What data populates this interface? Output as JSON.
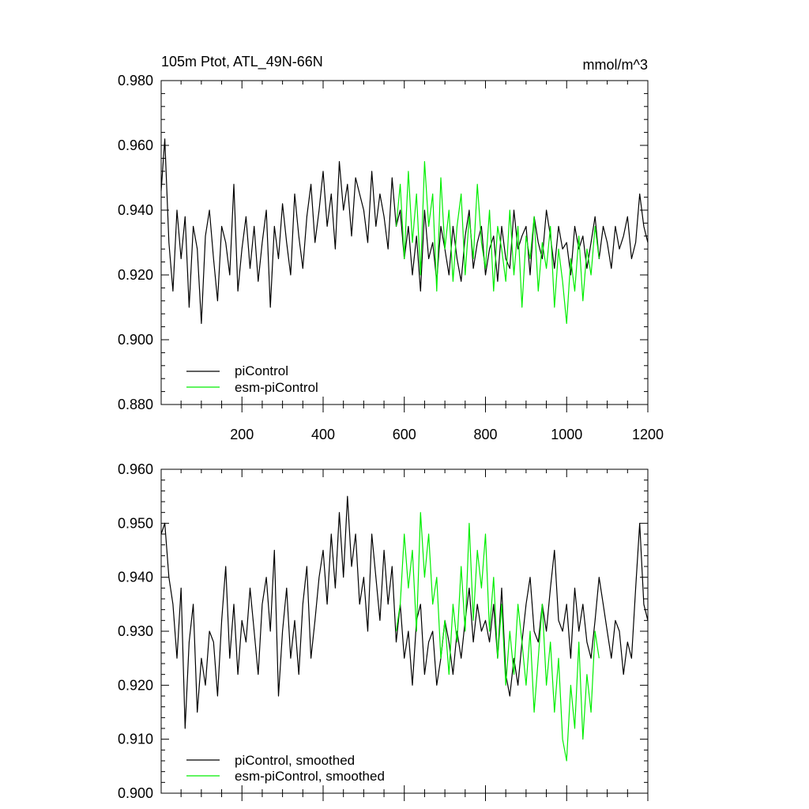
{
  "figure": {
    "title": "105m Ptot, ATL_49N-66N",
    "units": "mmol/m^3"
  },
  "chart_data": [
    {
      "type": "line",
      "title": "105m Ptot, ATL_49N-66N",
      "units": "mmol/m^3",
      "xlim": [
        1,
        1200
      ],
      "ylim": [
        0.88,
        0.98
      ],
      "x_ticks": [
        200,
        400,
        600,
        800,
        1000,
        1200
      ],
      "x_tick_labels": [
        "200",
        "400",
        "600",
        "800",
        "1000",
        "1200"
      ],
      "y_ticks": [
        0.88,
        0.9,
        0.92,
        0.94,
        0.96,
        0.98
      ],
      "y_tick_labels": [
        "0.880",
        "0.900",
        "0.920",
        "0.940",
        "0.960",
        "0.980"
      ],
      "legend": "bottom-left",
      "grid": false,
      "series": [
        {
          "name": "piControl",
          "color": "#000000",
          "x": [
            1,
            10,
            20,
            30,
            40,
            50,
            60,
            70,
            80,
            90,
            100,
            110,
            120,
            130,
            140,
            150,
            160,
            170,
            180,
            190,
            200,
            210,
            220,
            230,
            240,
            250,
            260,
            270,
            280,
            290,
            300,
            310,
            320,
            330,
            340,
            350,
            360,
            370,
            380,
            390,
            400,
            410,
            420,
            430,
            440,
            450,
            460,
            470,
            480,
            490,
            500,
            510,
            520,
            530,
            540,
            550,
            560,
            570,
            580,
            590,
            600,
            610,
            620,
            630,
            640,
            650,
            660,
            670,
            680,
            690,
            700,
            710,
            720,
            730,
            740,
            750,
            760,
            770,
            780,
            790,
            800,
            810,
            820,
            830,
            840,
            850,
            860,
            870,
            880,
            890,
            900,
            910,
            920,
            930,
            940,
            950,
            960,
            970,
            980,
            990,
            1000,
            1010,
            1020,
            1030,
            1040,
            1050,
            1060,
            1070,
            1080,
            1090,
            1100,
            1110,
            1120,
            1130,
            1140,
            1150,
            1160,
            1170,
            1180,
            1190,
            1200
          ],
          "y": [
            0.946,
            0.962,
            0.93,
            0.915,
            0.94,
            0.925,
            0.938,
            0.91,
            0.935,
            0.928,
            0.905,
            0.932,
            0.94,
            0.925,
            0.912,
            0.935,
            0.93,
            0.92,
            0.948,
            0.915,
            0.928,
            0.938,
            0.922,
            0.935,
            0.918,
            0.93,
            0.94,
            0.91,
            0.935,
            0.925,
            0.942,
            0.93,
            0.92,
            0.945,
            0.932,
            0.922,
            0.938,
            0.948,
            0.93,
            0.94,
            0.952,
            0.935,
            0.945,
            0.928,
            0.955,
            0.94,
            0.948,
            0.932,
            0.95,
            0.945,
            0.94,
            0.93,
            0.952,
            0.935,
            0.945,
            0.938,
            0.928,
            0.95,
            0.935,
            0.94,
            0.925,
            0.935,
            0.92,
            0.932,
            0.915,
            0.94,
            0.925,
            0.93,
            0.918,
            0.935,
            0.928,
            0.92,
            0.935,
            0.925,
            0.918,
            0.932,
            0.94,
            0.922,
            0.93,
            0.935,
            0.92,
            0.928,
            0.932,
            0.918,
            0.935,
            0.925,
            0.922,
            0.94,
            0.928,
            0.932,
            0.935,
            0.92,
            0.938,
            0.93,
            0.925,
            0.94,
            0.932,
            0.922,
            0.935,
            0.928,
            0.93,
            0.92,
            0.935,
            0.928,
            0.932,
            0.922,
            0.93,
            0.938,
            0.925,
            0.935,
            0.93,
            0.922,
            0.935,
            0.928,
            0.932,
            0.938,
            0.925,
            0.93,
            0.945,
            0.935,
            0.93
          ]
        },
        {
          "name": "esm-piControl",
          "color": "#00ee00",
          "x": [
            580,
            590,
            600,
            610,
            620,
            630,
            640,
            650,
            660,
            670,
            680,
            690,
            700,
            710,
            720,
            730,
            740,
            750,
            760,
            770,
            780,
            790,
            800,
            810,
            820,
            830,
            840,
            850,
            860,
            870,
            880,
            890,
            900,
            910,
            920,
            930,
            940,
            950,
            960,
            970,
            980,
            990,
            1000,
            1010,
            1020,
            1030,
            1040,
            1050,
            1060,
            1070,
            1080
          ],
          "y": [
            0.935,
            0.948,
            0.925,
            0.952,
            0.93,
            0.945,
            0.92,
            0.955,
            0.935,
            0.945,
            0.915,
            0.95,
            0.928,
            0.94,
            0.918,
            0.935,
            0.945,
            0.92,
            0.938,
            0.925,
            0.948,
            0.93,
            0.922,
            0.94,
            0.915,
            0.935,
            0.928,
            0.918,
            0.94,
            0.92,
            0.935,
            0.91,
            0.932,
            0.925,
            0.938,
            0.915,
            0.93,
            0.922,
            0.935,
            0.91,
            0.928,
            0.918,
            0.905,
            0.925,
            0.915,
            0.932,
            0.912,
            0.928,
            0.92,
            0.935,
            0.925
          ]
        }
      ]
    },
    {
      "type": "line",
      "xlim": [
        1,
        1200
      ],
      "ylim": [
        0.9,
        0.96
      ],
      "x_ticks": [
        200,
        400,
        600,
        800,
        1000,
        1200
      ],
      "y_ticks": [
        0.9,
        0.91,
        0.92,
        0.93,
        0.94,
        0.95,
        0.96
      ],
      "y_tick_labels": [
        "0.900",
        "0.910",
        "0.920",
        "0.930",
        "0.940",
        "0.950",
        "0.960"
      ],
      "legend": "bottom-left",
      "grid": false,
      "series": [
        {
          "name": "piControl, smoothed",
          "color": "#000000",
          "x": [
            1,
            10,
            20,
            30,
            40,
            50,
            60,
            70,
            80,
            90,
            100,
            110,
            120,
            130,
            140,
            150,
            160,
            170,
            180,
            190,
            200,
            210,
            220,
            230,
            240,
            250,
            260,
            270,
            280,
            290,
            300,
            310,
            320,
            330,
            340,
            350,
            360,
            370,
            380,
            390,
            400,
            410,
            420,
            430,
            440,
            450,
            460,
            470,
            480,
            490,
            500,
            510,
            520,
            530,
            540,
            550,
            560,
            570,
            580,
            590,
            600,
            610,
            620,
            630,
            640,
            650,
            660,
            670,
            680,
            690,
            700,
            710,
            720,
            730,
            740,
            750,
            760,
            770,
            780,
            790,
            800,
            810,
            820,
            830,
            840,
            850,
            860,
            870,
            880,
            890,
            900,
            910,
            920,
            930,
            940,
            950,
            960,
            970,
            980,
            990,
            1000,
            1010,
            1020,
            1030,
            1040,
            1050,
            1060,
            1070,
            1080,
            1090,
            1100,
            1110,
            1120,
            1130,
            1140,
            1150,
            1160,
            1170,
            1180,
            1190,
            1200
          ],
          "y": [
            0.948,
            0.95,
            0.94,
            0.935,
            0.925,
            0.938,
            0.912,
            0.928,
            0.935,
            0.915,
            0.925,
            0.92,
            0.93,
            0.928,
            0.918,
            0.932,
            0.942,
            0.925,
            0.935,
            0.922,
            0.932,
            0.928,
            0.938,
            0.93,
            0.922,
            0.935,
            0.94,
            0.93,
            0.945,
            0.918,
            0.93,
            0.938,
            0.925,
            0.932,
            0.922,
            0.935,
            0.942,
            0.925,
            0.932,
            0.94,
            0.945,
            0.935,
            0.948,
            0.938,
            0.952,
            0.94,
            0.955,
            0.942,
            0.948,
            0.935,
            0.94,
            0.93,
            0.948,
            0.94,
            0.932,
            0.945,
            0.935,
            0.942,
            0.928,
            0.935,
            0.925,
            0.93,
            0.92,
            0.932,
            0.935,
            0.922,
            0.928,
            0.93,
            0.92,
            0.925,
            0.932,
            0.928,
            0.922,
            0.93,
            0.925,
            0.932,
            0.938,
            0.928,
            0.935,
            0.93,
            0.932,
            0.928,
            0.935,
            0.925,
            0.938,
            0.922,
            0.918,
            0.925,
            0.92,
            0.928,
            0.935,
            0.94,
            0.93,
            0.928,
            0.935,
            0.93,
            0.938,
            0.945,
            0.932,
            0.93,
            0.935,
            0.925,
            0.938,
            0.93,
            0.935,
            0.928,
            0.925,
            0.932,
            0.94,
            0.935,
            0.93,
            0.925,
            0.932,
            0.93,
            0.922,
            0.928,
            0.925,
            0.938,
            0.95,
            0.935,
            0.932
          ]
        },
        {
          "name": "esm-piControl, smoothed",
          "color": "#00ee00",
          "x": [
            580,
            590,
            600,
            610,
            620,
            630,
            640,
            650,
            660,
            670,
            680,
            690,
            700,
            710,
            720,
            730,
            740,
            750,
            760,
            770,
            780,
            790,
            800,
            810,
            820,
            830,
            840,
            850,
            860,
            870,
            880,
            890,
            900,
            910,
            920,
            930,
            940,
            950,
            960,
            970,
            980,
            990,
            1000,
            1010,
            1020,
            1030,
            1040,
            1050,
            1060,
            1070,
            1080
          ],
          "y": [
            0.93,
            0.935,
            0.948,
            0.938,
            0.945,
            0.93,
            0.952,
            0.94,
            0.948,
            0.935,
            0.94,
            0.925,
            0.932,
            0.922,
            0.935,
            0.928,
            0.942,
            0.93,
            0.95,
            0.932,
            0.945,
            0.938,
            0.948,
            0.93,
            0.94,
            0.925,
            0.935,
            0.92,
            0.93,
            0.922,
            0.935,
            0.928,
            0.92,
            0.93,
            0.915,
            0.925,
            0.935,
            0.92,
            0.928,
            0.915,
            0.925,
            0.91,
            0.906,
            0.92,
            0.912,
            0.928,
            0.91,
            0.922,
            0.915,
            0.93,
            0.925
          ]
        }
      ]
    }
  ]
}
